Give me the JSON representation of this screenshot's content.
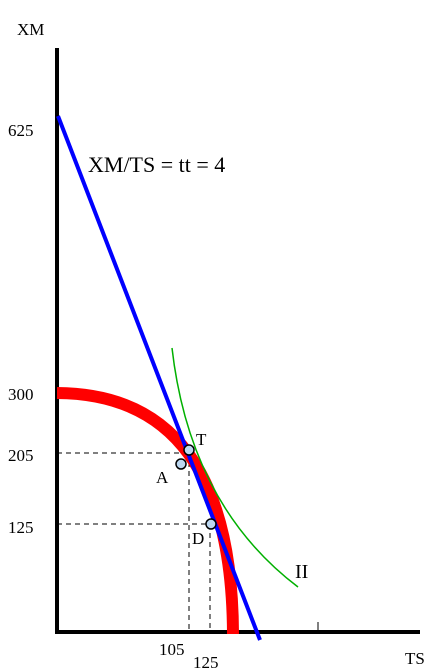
{
  "axes": {
    "y_label": "XM",
    "x_label": "TS",
    "y_ticks": [
      "625",
      "300",
      "205",
      "125"
    ],
    "x_ticks": [
      "105",
      "125"
    ]
  },
  "points": {
    "T": "T",
    "A": "A",
    "D": "D"
  },
  "labels": {
    "trade_line": "XM/TS = tt = 4",
    "indifference_curve": "II"
  },
  "colors": {
    "axes": "#000000",
    "ppf_curve": "#ff0000",
    "trade_line": "#0000ff",
    "indifference_curve": "#00b000",
    "point_fill": "#bcd7f0"
  }
}
